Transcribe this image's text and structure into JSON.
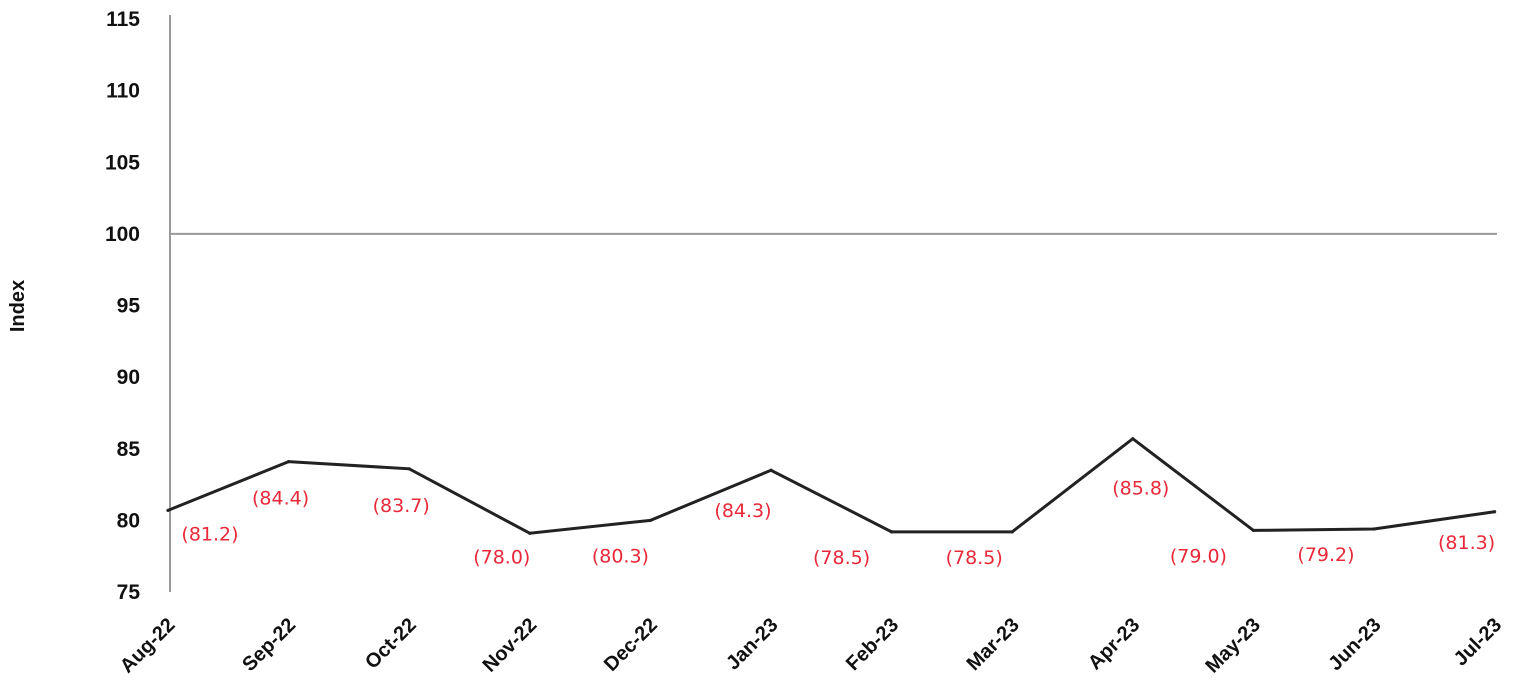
{
  "chart_data": {
    "type": "line",
    "title": "",
    "xlabel": "",
    "ylabel": "Index",
    "ylim": [
      75,
      115
    ],
    "yticks": [
      75,
      80,
      85,
      90,
      95,
      100,
      105,
      110,
      115
    ],
    "categories": [
      "Aug-22",
      "Sep-22",
      "Oct-22",
      "Nov-22",
      "Dec-22",
      "Jan-23",
      "Feb-23",
      "Mar-23",
      "Apr-23",
      "May-23",
      "Jun-23",
      "Jul-23"
    ],
    "series": [
      {
        "values": [
          80.7,
          84.1,
          83.6,
          79.1,
          80.0,
          83.5,
          79.2,
          79.2,
          85.7,
          79.3,
          79.4,
          80.6
        ],
        "data_labels": [
          "(81.2)",
          "(84.4)",
          "(83.7)",
          "(78.0)",
          "(80.3)",
          "(84.3)",
          "(78.5)",
          "(78.5)",
          "(85.8)",
          "(79.0)",
          "(79.2)",
          "(81.3)"
        ],
        "color": "#222222"
      }
    ],
    "reference_line": {
      "value": 100,
      "color": "#999999"
    },
    "label_color": "#e8293a",
    "grid": false,
    "legend": "none"
  }
}
